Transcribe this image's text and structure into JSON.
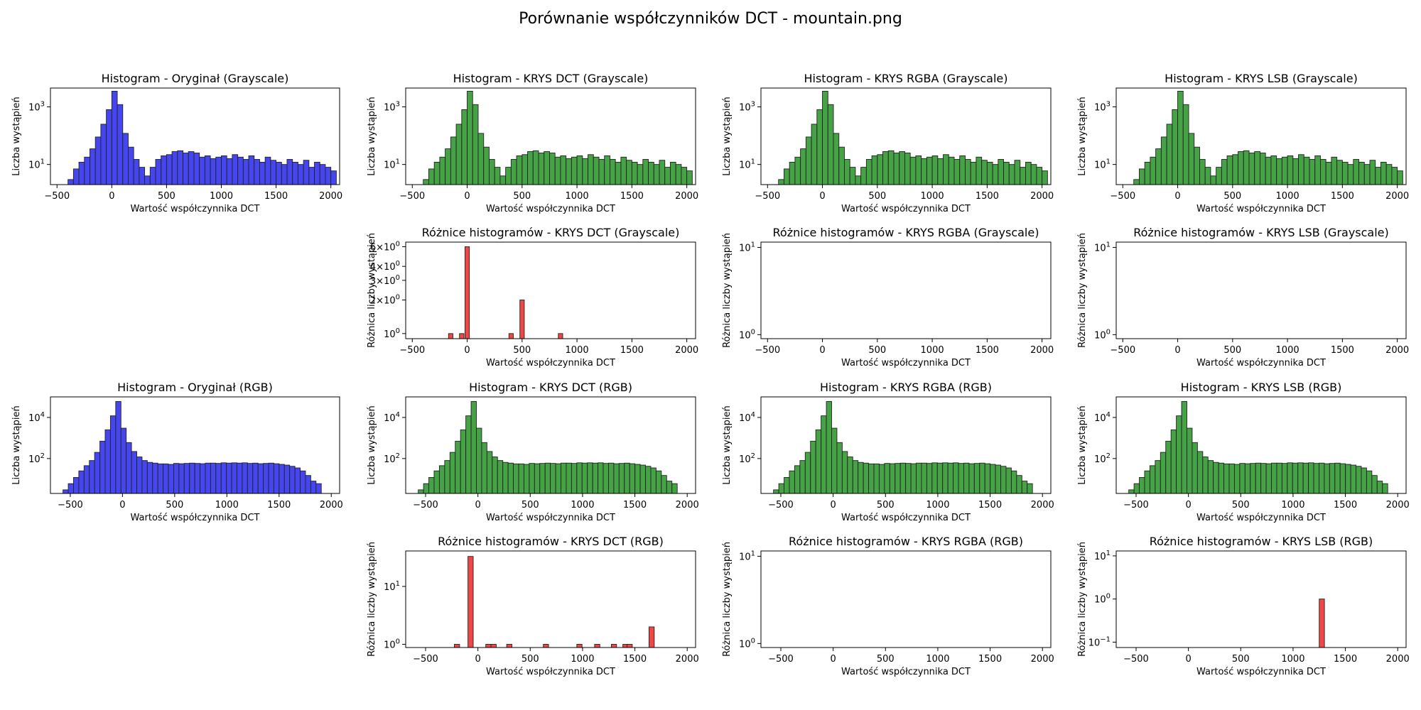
{
  "figure_title": "Porównanie współczynników DCT - mountain.png",
  "colors": {
    "original": "#4040f0",
    "stego": "#3f9f3f",
    "difference": "#ef4646",
    "edge": "#222222"
  },
  "chart_data": [
    {
      "id": "hist-orig-gray",
      "type": "bar",
      "scale": "log",
      "title": "Histogram - Oryginał (Grayscale)",
      "xlabel": "Wartość współczynnika DCT",
      "ylabel": "Liczba wystąpień",
      "xlim": [
        -560,
        2080
      ],
      "ylim": [
        2,
        4500
      ],
      "xticks": [
        -500,
        0,
        500,
        1000,
        1500,
        2000
      ],
      "yticks": [
        {
          "v": 10,
          "e": "1"
        },
        {
          "v": 1000,
          "e": "3"
        }
      ],
      "bin_start": -450,
      "bin_width": 50,
      "color": "original",
      "values": [
        1,
        3,
        7,
        12,
        18,
        35,
        90,
        250,
        800,
        3500,
        1200,
        120,
        40,
        15,
        8,
        4,
        8,
        15,
        20,
        22,
        28,
        30,
        25,
        28,
        25,
        18,
        20,
        16,
        18,
        20,
        16,
        22,
        18,
        15,
        20,
        15,
        12,
        18,
        14,
        12,
        10,
        15,
        12,
        10,
        14,
        8,
        12,
        10,
        8,
        6
      ]
    },
    {
      "id": "hist-dct-gray",
      "type": "bar",
      "scale": "log",
      "title": "Histogram - KRYS DCT (Grayscale)",
      "xlabel": "Wartość współczynnika DCT",
      "ylabel": "Liczba wystąpień",
      "xlim": [
        -560,
        2080
      ],
      "ylim": [
        2,
        4500
      ],
      "xticks": [
        -500,
        0,
        500,
        1000,
        1500,
        2000
      ],
      "yticks": [
        {
          "v": 10,
          "e": "1"
        },
        {
          "v": 1000,
          "e": "3"
        }
      ],
      "bin_start": -450,
      "bin_width": 50,
      "color": "stego",
      "values": [
        1,
        3,
        7,
        12,
        18,
        35,
        90,
        250,
        800,
        3500,
        1200,
        120,
        40,
        15,
        8,
        4,
        8,
        15,
        20,
        22,
        28,
        30,
        25,
        28,
        25,
        18,
        20,
        16,
        18,
        20,
        16,
        22,
        18,
        15,
        20,
        15,
        12,
        18,
        14,
        12,
        10,
        15,
        12,
        10,
        14,
        8,
        12,
        10,
        8,
        6
      ]
    },
    {
      "id": "hist-rgba-gray",
      "type": "bar",
      "scale": "log",
      "title": "Histogram - KRYS RGBA (Grayscale)",
      "xlabel": "Wartość współczynnika DCT",
      "ylabel": "Liczba wystąpień",
      "xlim": [
        -560,
        2080
      ],
      "ylim": [
        2,
        4500
      ],
      "xticks": [
        -500,
        0,
        500,
        1000,
        1500,
        2000
      ],
      "yticks": [
        {
          "v": 10,
          "e": "1"
        },
        {
          "v": 1000,
          "e": "3"
        }
      ],
      "bin_start": -450,
      "bin_width": 50,
      "color": "stego",
      "values": [
        1,
        3,
        7,
        12,
        18,
        35,
        90,
        250,
        800,
        3500,
        1200,
        120,
        40,
        15,
        8,
        4,
        8,
        15,
        20,
        22,
        28,
        30,
        25,
        28,
        25,
        18,
        20,
        16,
        18,
        20,
        16,
        22,
        18,
        15,
        20,
        15,
        12,
        18,
        14,
        12,
        10,
        15,
        12,
        10,
        14,
        8,
        12,
        10,
        8,
        6
      ]
    },
    {
      "id": "hist-lsb-gray",
      "type": "bar",
      "scale": "log",
      "title": "Histogram - KRYS LSB (Grayscale)",
      "xlabel": "Wartość współczynnika DCT",
      "ylabel": "Liczba wystąpień",
      "xlim": [
        -560,
        2080
      ],
      "ylim": [
        2,
        4500
      ],
      "xticks": [
        -500,
        0,
        500,
        1000,
        1500,
        2000
      ],
      "yticks": [
        {
          "v": 10,
          "e": "1"
        },
        {
          "v": 1000,
          "e": "3"
        }
      ],
      "bin_start": -450,
      "bin_width": 50,
      "color": "stego",
      "values": [
        1,
        3,
        7,
        12,
        18,
        35,
        90,
        250,
        800,
        3500,
        1200,
        120,
        40,
        15,
        8,
        4,
        8,
        15,
        20,
        22,
        28,
        30,
        25,
        28,
        25,
        18,
        20,
        16,
        18,
        20,
        16,
        22,
        18,
        15,
        20,
        15,
        12,
        18,
        14,
        12,
        10,
        15,
        12,
        10,
        14,
        8,
        12,
        10,
        8,
        6
      ]
    },
    {
      "id": "diff-dct-gray",
      "type": "bar",
      "scale": "log",
      "title": "Różnice histogramów - KRYS DCT (Grayscale)",
      "xlabel": "Wartość współczynnika DCT",
      "ylabel": "Różnica liczby wystąpień",
      "xlim": [
        -560,
        2080
      ],
      "ylim": [
        0.9,
        6.6
      ],
      "xticks": [
        -500,
        0,
        500,
        1000,
        1500,
        2000
      ],
      "yticks": [
        {
          "v": 1,
          "m": "10",
          "e": "0"
        },
        {
          "v": 2,
          "m": "2×10",
          "e": "0"
        },
        {
          "v": 3,
          "m": "3×10",
          "e": "0"
        },
        {
          "v": 4,
          "m": "4×10",
          "e": "0"
        },
        {
          "v": 6,
          "m": "6×10",
          "e": "0"
        }
      ],
      "color": "difference",
      "bars": [
        {
          "x": -150,
          "w": 40,
          "y": 1
        },
        {
          "x": -50,
          "w": 40,
          "y": 1
        },
        {
          "x": 0,
          "w": 40,
          "y": 6
        },
        {
          "x": 400,
          "w": 40,
          "y": 1
        },
        {
          "x": 500,
          "w": 40,
          "y": 2
        },
        {
          "x": 850,
          "w": 40,
          "y": 1
        }
      ]
    },
    {
      "id": "diff-rgba-gray",
      "type": "bar",
      "scale": "log",
      "title": "Różnice histogramów - KRYS RGBA (Grayscale)",
      "xlabel": "Wartość współczynnika DCT",
      "ylabel": "Różnica liczby wystąpień",
      "xlim": [
        -560,
        2080
      ],
      "ylim": [
        0.9,
        11.5
      ],
      "xticks": [
        -500,
        0,
        500,
        1000,
        1500,
        2000
      ],
      "yticks": [
        {
          "v": 1,
          "e": "0"
        },
        {
          "v": 10,
          "e": "1"
        }
      ],
      "color": "difference",
      "bars": []
    },
    {
      "id": "diff-lsb-gray",
      "type": "bar",
      "scale": "log",
      "title": "Różnice histogramów - KRYS LSB (Grayscale)",
      "xlabel": "Wartość współczynnika DCT",
      "ylabel": "Różnica liczby wystąpień",
      "xlim": [
        -560,
        2080
      ],
      "ylim": [
        0.9,
        11.5
      ],
      "xticks": [
        -500,
        0,
        500,
        1000,
        1500,
        2000
      ],
      "yticks": [
        {
          "v": 1,
          "e": "0"
        },
        {
          "v": 10,
          "e": "1"
        }
      ],
      "color": "difference",
      "bars": []
    },
    {
      "id": "hist-orig-rgb",
      "type": "bar",
      "scale": "log",
      "title": "Histogram - Oryginał (RGB)",
      "xlabel": "Wartość współczynnika DCT",
      "ylabel": "Liczba wystąpień",
      "xlim": [
        -690,
        2080
      ],
      "ylim": [
        2,
        100000
      ],
      "xticks": [
        -500,
        0,
        500,
        1000,
        1500,
        2000
      ],
      "yticks": [
        {
          "v": 100,
          "e": "2"
        },
        {
          "v": 10000,
          "e": "4"
        }
      ],
      "bin_start": -570,
      "bin_width": 50.5,
      "color": "original",
      "values": [
        3,
        6,
        12,
        25,
        45,
        80,
        200,
        700,
        2500,
        12000,
        60000,
        3000,
        600,
        220,
        120,
        80,
        65,
        60,
        55,
        55,
        52,
        58,
        56,
        58,
        60,
        58,
        56,
        60,
        60,
        58,
        62,
        60,
        62,
        60,
        62,
        58,
        60,
        56,
        58,
        60,
        56,
        52,
        48,
        42,
        35,
        25,
        15,
        8,
        6
      ]
    },
    {
      "id": "hist-dct-rgb",
      "type": "bar",
      "scale": "log",
      "title": "Histogram - KRYS DCT (RGB)",
      "xlabel": "Wartość współczynnika DCT",
      "ylabel": "Liczba wystąpień",
      "xlim": [
        -690,
        2080
      ],
      "ylim": [
        2,
        100000
      ],
      "xticks": [
        -500,
        0,
        500,
        1000,
        1500,
        2000
      ],
      "yticks": [
        {
          "v": 100,
          "e": "2"
        },
        {
          "v": 10000,
          "e": "4"
        }
      ],
      "bin_start": -570,
      "bin_width": 50.5,
      "color": "stego",
      "values": [
        3,
        6,
        12,
        25,
        45,
        80,
        200,
        700,
        2500,
        12000,
        60000,
        3000,
        600,
        220,
        120,
        80,
        65,
        60,
        55,
        55,
        52,
        58,
        56,
        58,
        60,
        58,
        56,
        60,
        60,
        58,
        62,
        60,
        62,
        60,
        62,
        58,
        60,
        56,
        58,
        60,
        56,
        52,
        48,
        42,
        35,
        25,
        15,
        8,
        6
      ]
    },
    {
      "id": "hist-rgba-rgb",
      "type": "bar",
      "scale": "log",
      "title": "Histogram - KRYS RGBA (RGB)",
      "xlabel": "Wartość współczynnika DCT",
      "ylabel": "Liczba wystąpień",
      "xlim": [
        -690,
        2080
      ],
      "ylim": [
        2,
        100000
      ],
      "xticks": [
        -500,
        0,
        500,
        1000,
        1500,
        2000
      ],
      "yticks": [
        {
          "v": 100,
          "e": "2"
        },
        {
          "v": 10000,
          "e": "4"
        }
      ],
      "bin_start": -570,
      "bin_width": 50.5,
      "color": "stego",
      "values": [
        3,
        6,
        12,
        25,
        45,
        80,
        200,
        700,
        2500,
        12000,
        60000,
        3000,
        600,
        220,
        120,
        80,
        65,
        60,
        55,
        55,
        52,
        58,
        56,
        58,
        60,
        58,
        56,
        60,
        60,
        58,
        62,
        60,
        62,
        60,
        62,
        58,
        60,
        56,
        58,
        60,
        56,
        52,
        48,
        42,
        35,
        25,
        15,
        8,
        6
      ]
    },
    {
      "id": "hist-lsb-rgb",
      "type": "bar",
      "scale": "log",
      "title": "Histogram - KRYS LSB (RGB)",
      "xlabel": "Wartość współczynnika DCT",
      "ylabel": "Liczba wystąpień",
      "xlim": [
        -690,
        2080
      ],
      "ylim": [
        2,
        100000
      ],
      "xticks": [
        -500,
        0,
        500,
        1000,
        1500,
        2000
      ],
      "yticks": [
        {
          "v": 100,
          "e": "2"
        },
        {
          "v": 10000,
          "e": "4"
        }
      ],
      "bin_start": -570,
      "bin_width": 50.5,
      "color": "stego",
      "values": [
        3,
        6,
        12,
        25,
        45,
        80,
        200,
        700,
        2500,
        12000,
        60000,
        3000,
        600,
        220,
        120,
        80,
        65,
        60,
        55,
        55,
        52,
        58,
        56,
        58,
        60,
        58,
        56,
        60,
        60,
        58,
        62,
        60,
        62,
        60,
        62,
        58,
        60,
        56,
        58,
        60,
        56,
        52,
        48,
        42,
        35,
        25,
        15,
        8,
        6
      ]
    },
    {
      "id": "diff-dct-rgb",
      "type": "bar",
      "scale": "log",
      "title": "Różnice histogramów - KRYS DCT (RGB)",
      "xlabel": "Wartość współczynnika DCT",
      "ylabel": "Różnica liczby wystąpień",
      "xlim": [
        -690,
        2080
      ],
      "ylim": [
        0.88,
        41
      ],
      "xticks": [
        -500,
        0,
        500,
        1000,
        1500,
        2000
      ],
      "yticks": [
        {
          "v": 1,
          "e": "0"
        },
        {
          "v": 10,
          "e": "1"
        }
      ],
      "color": "difference",
      "bars": [
        {
          "x": -200,
          "w": 50,
          "y": 1
        },
        {
          "x": -70,
          "w": 50,
          "y": 33
        },
        {
          "x": 100,
          "w": 50,
          "y": 1
        },
        {
          "x": 150,
          "w": 50,
          "y": 1
        },
        {
          "x": 300,
          "w": 50,
          "y": 1
        },
        {
          "x": 650,
          "w": 50,
          "y": 1
        },
        {
          "x": 970,
          "w": 50,
          "y": 1
        },
        {
          "x": 1140,
          "w": 50,
          "y": 1
        },
        {
          "x": 1300,
          "w": 50,
          "y": 1
        },
        {
          "x": 1410,
          "w": 50,
          "y": 1
        },
        {
          "x": 1450,
          "w": 50,
          "y": 1
        },
        {
          "x": 1660,
          "w": 50,
          "y": 2
        }
      ]
    },
    {
      "id": "diff-rgba-rgb",
      "type": "bar",
      "scale": "log",
      "title": "Różnice histogramów - KRYS RGBA (RGB)",
      "xlabel": "Wartość współczynnika DCT",
      "ylabel": "Różnica liczby wystąpień",
      "xlim": [
        -690,
        2080
      ],
      "ylim": [
        0.9,
        11.5
      ],
      "xticks": [
        -500,
        0,
        500,
        1000,
        1500,
        2000
      ],
      "yticks": [
        {
          "v": 1,
          "e": "0"
        },
        {
          "v": 10,
          "e": "1"
        }
      ],
      "color": "difference",
      "bars": []
    },
    {
      "id": "diff-lsb-rgb",
      "type": "bar",
      "scale": "log",
      "title": "Różnice histogramów - KRYS LSB (RGB)",
      "xlabel": "Wartość współczynnika DCT",
      "ylabel": "Różnica liczby wystąpień",
      "xlim": [
        -690,
        2080
      ],
      "ylim": [
        0.075,
        13
      ],
      "xticks": [
        -500,
        0,
        500,
        1000,
        1500,
        2000
      ],
      "yticks": [
        {
          "v": 0.1,
          "e": "−1"
        },
        {
          "v": 1,
          "e": "0"
        },
        {
          "v": 10,
          "e": "1"
        }
      ],
      "color": "difference",
      "bars": [
        {
          "x": 1275,
          "w": 50,
          "y": 1
        }
      ]
    }
  ]
}
